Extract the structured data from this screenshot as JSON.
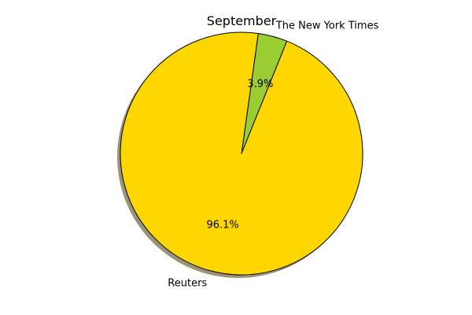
{
  "chart_data": {
    "type": "pie",
    "title": "September",
    "slices": [
      {
        "label": "The New York Times",
        "value": 3.9,
        "pct_label": "3.9%",
        "color": "#9acd32"
      },
      {
        "label": "Reuters",
        "value": 96.1,
        "pct_label": "96.1%",
        "color": "#ffd700"
      }
    ],
    "shadow": true,
    "start_angle_deg": 68,
    "direction": "counterclockwise",
    "edge_color": "#000000",
    "shadow_color": "#9a9476"
  }
}
